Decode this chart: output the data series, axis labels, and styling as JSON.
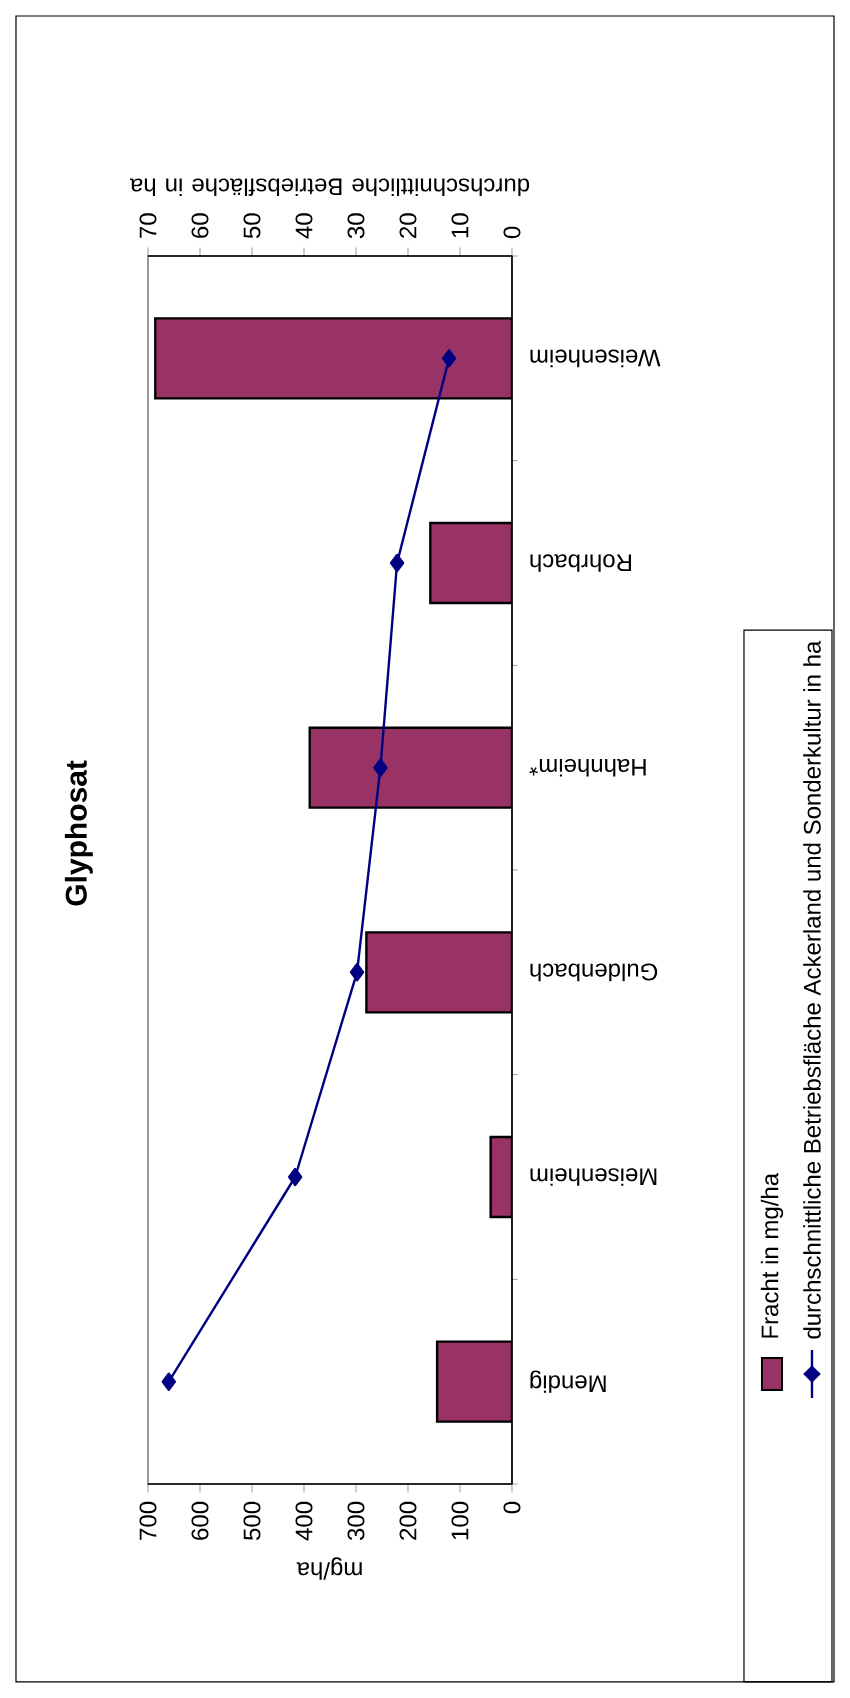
{
  "chart_data": {
    "type": "bar",
    "orientation": "horizontal",
    "title": "Glyphosat",
    "xlabel": "mg/ha",
    "x2label": "durchschnittliche Betriebsfläche in ha",
    "categories": [
      "Weisenheim",
      "Rohrbach",
      "Hahnheim*",
      "Guldenbach",
      "Meisenheim",
      "Mendig"
    ],
    "series": [
      {
        "name": "Fracht in mg/ha",
        "color": "#993366",
        "values": [
          686,
          157,
          389,
          280,
          41,
          144
        ]
      },
      {
        "name": "durchschnittliche Betriebsfläche Ackerland und Sonderkultur in ha",
        "type": "line",
        "axis": "x2",
        "color": "#000080",
        "marker": "diamond",
        "values": [
          12.1,
          22.1,
          25.3,
          29.8,
          41.7,
          66.0
        ]
      }
    ],
    "xlim": [
      700,
      0
    ],
    "xticks": [
      700,
      600,
      500,
      400,
      300,
      200,
      100,
      0
    ],
    "x2lim": [
      70,
      0
    ],
    "x2ticks": [
      70,
      60,
      50,
      40,
      30,
      20,
      10,
      0
    ],
    "legend": "right",
    "grid": false
  }
}
